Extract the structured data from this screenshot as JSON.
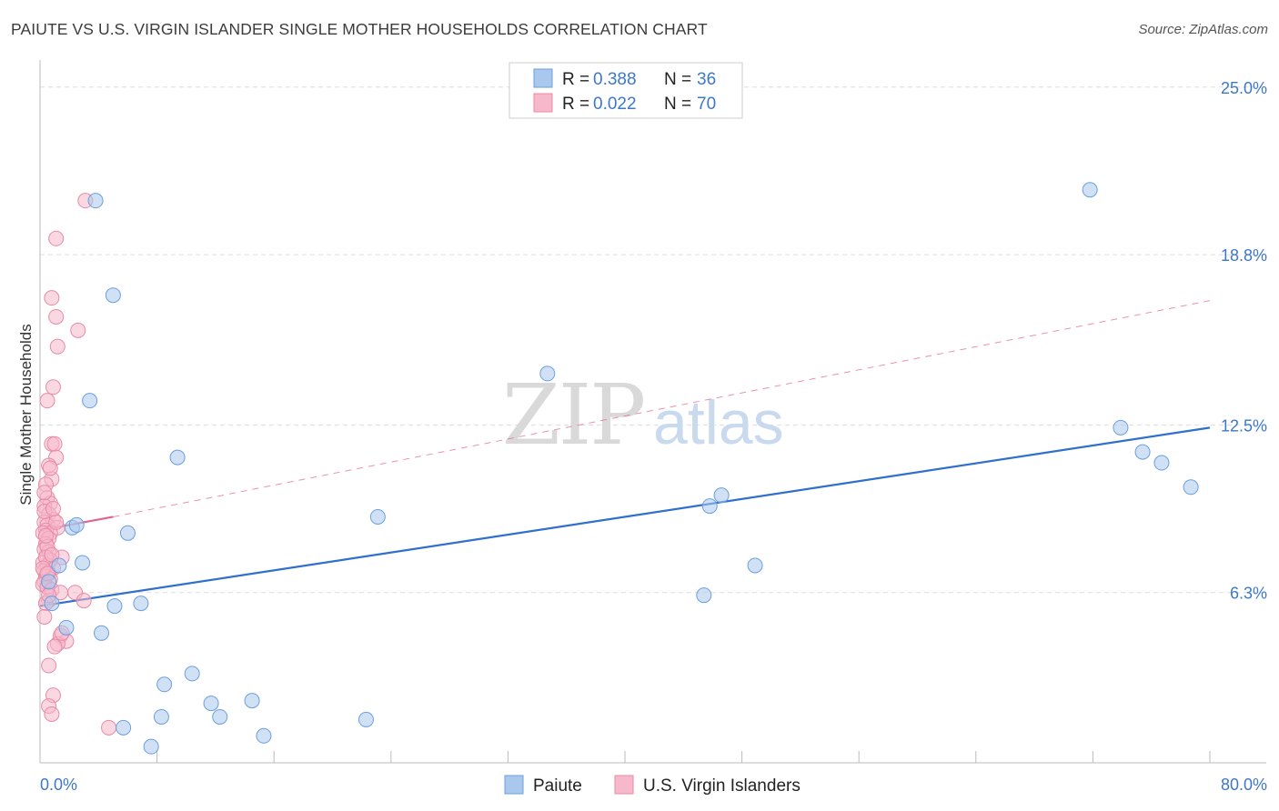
{
  "header": {
    "title": "PAIUTE VS U.S. VIRGIN ISLANDER SINGLE MOTHER HOUSEHOLDS CORRELATION CHART",
    "source": "Source: ZipAtlas.com"
  },
  "watermark": {
    "zip": "ZIP",
    "atlas": "atlas"
  },
  "legend_box": {
    "rows": [
      {
        "r_label": "R =",
        "r_value": "0.388",
        "n_label": "N =",
        "n_value": "36"
      },
      {
        "r_label": "R =",
        "r_value": "0.022",
        "n_label": "N =",
        "n_value": "70"
      }
    ]
  },
  "bottom_legend": {
    "series1": "Paiute",
    "series2": "U.S. Virgin Islanders"
  },
  "colors": {
    "paiute_fill": "#aac8ee",
    "paiute_stroke": "#6b9fdc",
    "paiute_line": "#2f6fce",
    "vi_fill": "#f6b8ca",
    "vi_stroke": "#e88aa7",
    "vi_line": "#e0648c",
    "grid": "#dddddd",
    "axis_label": "#3d78c8"
  },
  "chart_data": {
    "type": "scatter",
    "title": "PAIUTE VS U.S. VIRGIN ISLANDER SINGLE MOTHER HOUSEHOLDS CORRELATION CHART",
    "xlabel": "",
    "ylabel": "Single Mother Households",
    "xlim": [
      0,
      80
    ],
    "ylim": [
      0,
      25.8
    ],
    "x_tick_labels": [
      "0.0%",
      "80.0%"
    ],
    "y_ticks": [
      6.3,
      12.5,
      18.8,
      25.0
    ],
    "y_tick_labels": [
      "6.3%",
      "12.5%",
      "18.8%",
      "25.0%"
    ],
    "grid": true,
    "series": [
      {
        "name": "Paiute",
        "R": 0.388,
        "N": 36,
        "points": [
          [
            3.8,
            20.8
          ],
          [
            5.0,
            17.3
          ],
          [
            3.4,
            13.4
          ],
          [
            9.4,
            11.3
          ],
          [
            2.2,
            8.7
          ],
          [
            6.0,
            8.5
          ],
          [
            2.9,
            7.4
          ],
          [
            1.3,
            7.3
          ],
          [
            0.6,
            6.7
          ],
          [
            0.8,
            5.9
          ],
          [
            5.1,
            5.8
          ],
          [
            6.9,
            5.9
          ],
          [
            1.8,
            5.0
          ],
          [
            4.2,
            4.8
          ],
          [
            10.4,
            3.3
          ],
          [
            8.5,
            2.9
          ],
          [
            11.7,
            2.2
          ],
          [
            8.3,
            1.7
          ],
          [
            12.3,
            1.7
          ],
          [
            14.5,
            2.3
          ],
          [
            5.7,
            1.3
          ],
          [
            7.6,
            0.6
          ],
          [
            15.3,
            1.0
          ],
          [
            22.3,
            1.6
          ],
          [
            23.1,
            9.1
          ],
          [
            34.7,
            14.4
          ],
          [
            45.8,
            9.5
          ],
          [
            46.6,
            9.9
          ],
          [
            48.9,
            7.3
          ],
          [
            45.4,
            6.2
          ],
          [
            71.8,
            21.2
          ],
          [
            73.9,
            12.4
          ],
          [
            75.4,
            11.5
          ],
          [
            76.7,
            11.1
          ],
          [
            78.7,
            10.2
          ],
          [
            2.5,
            8.8
          ]
        ]
      },
      {
        "name": "U.S. Virgin Islanders",
        "R": 0.022,
        "N": 70,
        "points": [
          [
            3.1,
            20.8
          ],
          [
            1.1,
            19.4
          ],
          [
            0.8,
            17.2
          ],
          [
            1.1,
            16.5
          ],
          [
            2.6,
            16.0
          ],
          [
            1.2,
            15.4
          ],
          [
            0.9,
            13.9
          ],
          [
            0.5,
            13.4
          ],
          [
            0.8,
            11.8
          ],
          [
            1.0,
            11.8
          ],
          [
            1.1,
            11.3
          ],
          [
            0.6,
            11.0
          ],
          [
            0.8,
            10.5
          ],
          [
            0.4,
            10.3
          ],
          [
            0.5,
            9.8
          ],
          [
            0.7,
            9.6
          ],
          [
            0.3,
            9.5
          ],
          [
            0.6,
            9.2
          ],
          [
            0.9,
            9.0
          ],
          [
            0.3,
            8.9
          ],
          [
            0.5,
            8.8
          ],
          [
            1.2,
            8.7
          ],
          [
            0.4,
            8.6
          ],
          [
            0.7,
            8.5
          ],
          [
            0.2,
            8.5
          ],
          [
            0.6,
            8.3
          ],
          [
            0.4,
            8.1
          ],
          [
            0.3,
            7.9
          ],
          [
            0.6,
            7.8
          ],
          [
            1.5,
            7.6
          ],
          [
            0.7,
            7.5
          ],
          [
            0.2,
            7.4
          ],
          [
            0.5,
            7.3
          ],
          [
            0.9,
            7.2
          ],
          [
            0.3,
            7.1
          ],
          [
            0.6,
            7.0
          ],
          [
            0.4,
            6.9
          ],
          [
            0.7,
            6.8
          ],
          [
            0.3,
            6.7
          ],
          [
            0.2,
            6.6
          ],
          [
            0.5,
            6.5
          ],
          [
            0.8,
            6.4
          ],
          [
            1.4,
            6.3
          ],
          [
            2.4,
            6.3
          ],
          [
            3.0,
            6.0
          ],
          [
            0.6,
            6.0
          ],
          [
            0.4,
            5.9
          ],
          [
            0.3,
            5.4
          ],
          [
            1.4,
            4.7
          ],
          [
            1.8,
            4.5
          ],
          [
            1.2,
            4.4
          ],
          [
            1.0,
            4.3
          ],
          [
            0.6,
            3.6
          ],
          [
            0.9,
            2.5
          ],
          [
            0.6,
            2.1
          ],
          [
            0.8,
            1.8
          ],
          [
            4.7,
            1.3
          ],
          [
            0.3,
            9.3
          ],
          [
            0.5,
            8.0
          ],
          [
            0.4,
            7.6
          ],
          [
            0.2,
            7.2
          ],
          [
            0.6,
            6.2
          ],
          [
            1.1,
            8.9
          ],
          [
            0.9,
            9.4
          ],
          [
            0.3,
            10.0
          ],
          [
            0.7,
            10.9
          ],
          [
            0.5,
            7.0
          ],
          [
            1.5,
            4.8
          ],
          [
            0.4,
            8.4
          ],
          [
            0.8,
            7.7
          ]
        ]
      }
    ],
    "trend_lines": [
      {
        "series": "Paiute",
        "x": [
          0,
          80
        ],
        "y": [
          5.8,
          12.4
        ],
        "style": "solid"
      },
      {
        "series": "U.S. Virgin Islanders",
        "x": [
          0,
          5
        ],
        "y": [
          8.6,
          9.1
        ],
        "style": "solid"
      },
      {
        "series": "U.S. Virgin Islanders",
        "x": [
          5,
          80
        ],
        "y": [
          9.1,
          17.1
        ],
        "style": "dashed"
      }
    ]
  }
}
